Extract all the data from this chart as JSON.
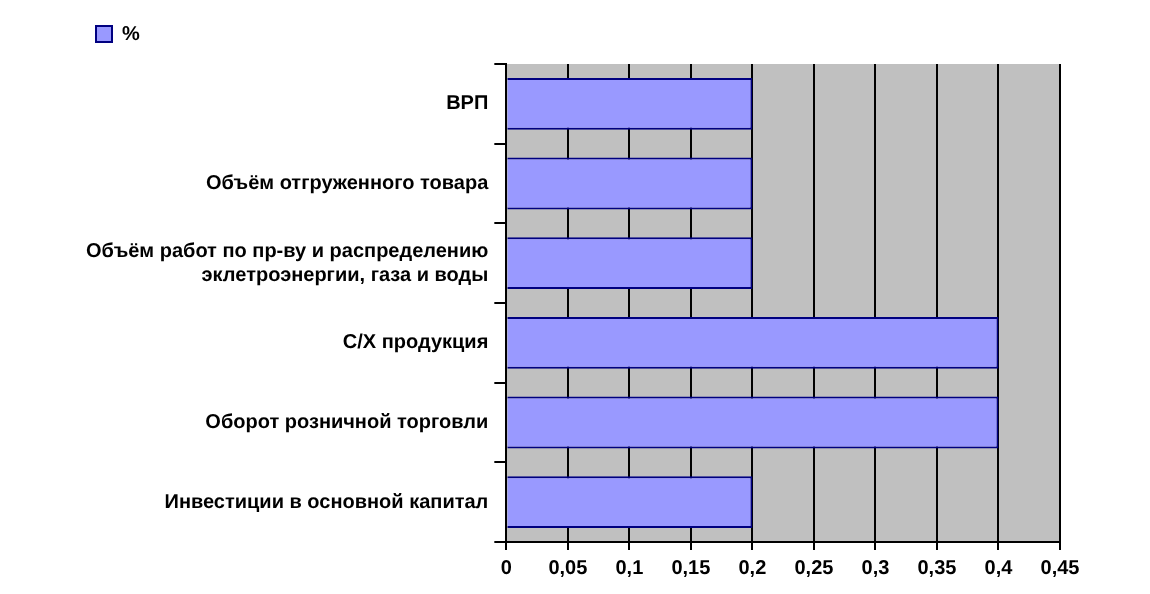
{
  "chart_data": {
    "type": "bar",
    "orientation": "horizontal",
    "categories": [
      "ВРП",
      "Объём отгруженного товара",
      "Объём работ по пр-ву и распределению эклетроэнергии, газа и воды",
      "С/Х продукция",
      "Оборот розничной торговли",
      "Инвестиции в основной капитал"
    ],
    "series": [
      {
        "name": "%",
        "color": "#9999ff",
        "values": [
          0.2,
          0.2,
          0.2,
          0.4,
          0.4,
          0.2
        ]
      }
    ],
    "xlim": [
      0,
      0.45
    ],
    "xticks": [
      0,
      {
        "value": 0.05,
        "label": "0,05"
      },
      {
        "value": 0.1,
        "label": "0,1"
      },
      {
        "value": 0.15,
        "label": "0,15"
      },
      {
        "value": 0.2,
        "label": "0,2"
      },
      {
        "value": 0.25,
        "label": "0,25"
      },
      {
        "value": 0.3,
        "label": "0,3"
      },
      {
        "value": 0.35,
        "label": "0,35"
      },
      {
        "value": 0.4,
        "label": "0,4"
      },
      {
        "value": 0.45,
        "label": "0,45"
      }
    ],
    "grid": "x",
    "legend": "top left"
  }
}
